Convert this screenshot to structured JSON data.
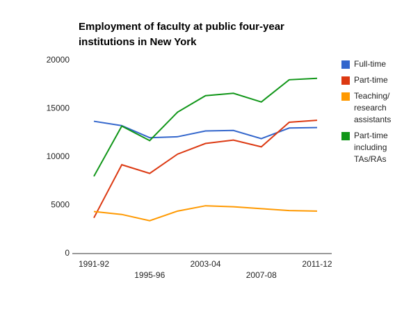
{
  "chart_data": {
    "type": "line",
    "title": "Employment of faculty at public four-year institutions in New York",
    "categories": [
      "1991-92",
      null,
      "1995-96",
      null,
      "2003-04",
      null,
      "2007-08",
      null,
      "2011-12"
    ],
    "series": [
      {
        "name": "Full-time",
        "color": "#3366cc",
        "values": [
          13700,
          13250,
          12000,
          12100,
          12700,
          12750,
          11900,
          13000,
          13050
        ]
      },
      {
        "name": "Part-time",
        "color": "#dc3912",
        "values": [
          3700,
          9200,
          8300,
          10300,
          11400,
          11750,
          11050,
          13600,
          13800
        ]
      },
      {
        "name": "Teaching/ research assistants",
        "color": "#ff9900",
        "values": [
          4350,
          4050,
          3400,
          4400,
          4950,
          4850,
          4650,
          4450,
          4400
        ]
      },
      {
        "name": "Part-time including TAs/RAs",
        "color": "#109618",
        "values": [
          8000,
          13200,
          11700,
          14650,
          16350,
          16600,
          15700,
          18000,
          18150
        ]
      }
    ],
    "ylim": [
      0,
      20000
    ],
    "yticks": [
      0,
      5000,
      10000,
      15000,
      20000
    ],
    "grid": false,
    "legend": "right"
  }
}
